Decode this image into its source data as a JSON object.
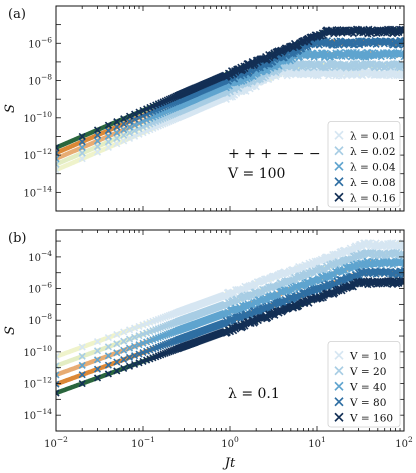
{
  "chart_data": [
    {
      "type": "scatter",
      "panel_label": "(a)",
      "xlabel": "",
      "ylabel": "S",
      "xscale": "log",
      "yscale": "log",
      "xlim": [
        0.01,
        100
      ],
      "ylim": [
        1e-15,
        0.0001
      ],
      "x_ticks": [
        "10^-2",
        "10^-1",
        "10^0",
        "10^1",
        "10^2"
      ],
      "x_ticks_labeled": false,
      "y_ticks": [
        "10^-14",
        "10^-12",
        "10^-10",
        "10^-8",
        "10^-6"
      ],
      "annotation_line1": "+ + + − − −",
      "annotation_line2": "V = 100",
      "legend_position": "lower-right",
      "marker": "x",
      "series": [
        {
          "name": "λ = 0.01",
          "color": "#d6e6f2",
          "curve_color": "#eef2c8",
          "prefactor": 1.6e-09,
          "plateau": 2.5e-08
        },
        {
          "name": "λ = 0.02",
          "color": "#a8cde4",
          "curve_color": "#e2ecc0",
          "prefactor": 3.2e-09,
          "plateau": 6.5e-08
        },
        {
          "name": "λ = 0.04",
          "color": "#5fa4cf",
          "curve_color": "#e6a86c",
          "prefactor": 6.4e-09,
          "plateau": 2.5e-07
        },
        {
          "name": "λ = 0.08",
          "color": "#2f6fa3",
          "curve_color": "#d9822b",
          "prefactor": 1.3e-08,
          "plateau": 1.1e-06
        },
        {
          "name": "λ = 0.16",
          "color": "#132f55",
          "curve_color": "#1f5e33",
          "prefactor": 2.5e-08,
          "plateau": 4.5e-06
        }
      ]
    },
    {
      "type": "scatter",
      "panel_label": "(b)",
      "xlabel": "Jt",
      "ylabel": "S",
      "xscale": "log",
      "yscale": "log",
      "xlim": [
        0.01,
        100
      ],
      "ylim": [
        1e-15,
        0.005
      ],
      "x_ticks": [
        "10^-2",
        "10^-1",
        "10^0",
        "10^1",
        "10^2"
      ],
      "x_ticks_labeled": true,
      "y_ticks": [
        "10^-14",
        "10^-12",
        "10^-10",
        "10^-8",
        "10^-6",
        "10^-4"
      ],
      "annotation_line1": "λ = 0.1",
      "legend_position": "lower-right",
      "marker": "x",
      "series": [
        {
          "name": "V = 10",
          "color": "#d6e6f2",
          "curve_color": "#eef2c8",
          "prefactor": 5e-07,
          "plateau": 0.0006
        },
        {
          "name": "V = 20",
          "color": "#a8cde4",
          "curve_color": "#e2ecc0",
          "prefactor": 1.3e-07,
          "plateau": 0.00015
        },
        {
          "name": "V = 40",
          "color": "#5fa4cf",
          "curve_color": "#e6a86c",
          "prefactor": 3.5e-08,
          "plateau": 4e-05
        },
        {
          "name": "V = 80",
          "color": "#2f6fa3",
          "curve_color": "#d9822b",
          "prefactor": 9e-09,
          "plateau": 1e-05
        },
        {
          "name": "V = 160",
          "color": "#132f55",
          "curve_color": "#1f5e33",
          "prefactor": 2.5e-09,
          "plateau": 2.5e-06
        }
      ]
    }
  ]
}
